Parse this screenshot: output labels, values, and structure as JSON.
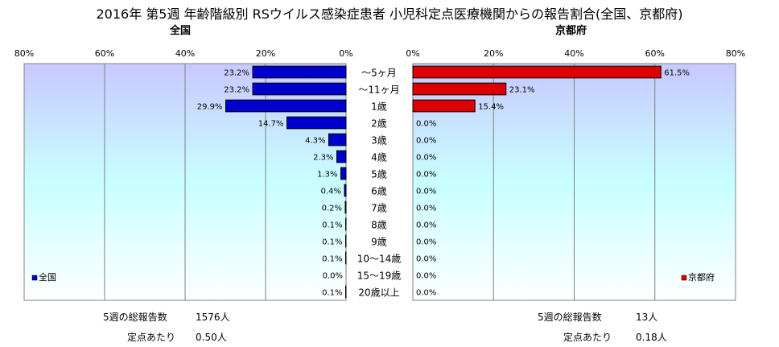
{
  "title": "2016年 第5週 年齢階級別 RSウイルス感染症患者 小児科定点医療機関からの報告割合(全国、京都府)",
  "chart_data": [
    {
      "type": "bar",
      "orientation": "horizontal",
      "direction": "right-to-left",
      "subtitle": "全国",
      "legend": "全国",
      "legend_position": "bottom-left",
      "color": "#0000cc",
      "xlim": [
        0,
        80
      ],
      "xticks": [
        "0%",
        "20%",
        "40%",
        "60%",
        "80%"
      ],
      "grid": true,
      "categories": [
        "～5ヶ月",
        "～11ヶ月",
        "1歳",
        "2歳",
        "3歳",
        "4歳",
        "5歳",
        "6歳",
        "7歳",
        "8歳",
        "9歳",
        "10～14歳",
        "15～19歳",
        "20歳以上"
      ],
      "values": [
        23.2,
        23.2,
        29.9,
        14.7,
        4.3,
        2.3,
        1.3,
        0.4,
        0.2,
        0.1,
        0.1,
        0.1,
        0.0,
        0.1
      ],
      "labels": [
        "23.2%",
        "23.2%",
        "29.9%",
        "14.7%",
        "4.3%",
        "2.3%",
        "1.3%",
        "0.4%",
        "0.2%",
        "0.1%",
        "0.1%",
        "0.1%",
        "0.0%",
        "0.1%"
      ]
    },
    {
      "type": "bar",
      "orientation": "horizontal",
      "direction": "left-to-right",
      "subtitle": "京都府",
      "legend": "京都府",
      "legend_position": "bottom-right",
      "color": "#dd0000",
      "xlim": [
        0,
        80
      ],
      "xticks": [
        "0%",
        "20%",
        "40%",
        "60%",
        "80%"
      ],
      "grid": true,
      "categories": [
        "～5ヶ月",
        "～11ヶ月",
        "1歳",
        "2歳",
        "3歳",
        "4歳",
        "5歳",
        "6歳",
        "7歳",
        "8歳",
        "9歳",
        "10～14歳",
        "15～19歳",
        "20歳以上"
      ],
      "values": [
        61.5,
        23.1,
        15.4,
        0,
        0,
        0,
        0,
        0,
        0,
        0,
        0,
        0,
        0,
        0
      ],
      "labels": [
        "61.5%",
        "23.1%",
        "15.4%",
        "0.0%",
        "0.0%",
        "0.0%",
        "0.0%",
        "0.0%",
        "0.0%",
        "0.0%",
        "0.0%",
        "0.0%",
        "0.0%",
        "0.0%"
      ]
    }
  ],
  "footer": {
    "national": {
      "total_label": "5週の総報告数",
      "total_value": "1576人",
      "per_label": "定点あたり",
      "per_value": "0.50人"
    },
    "kyoto": {
      "total_label": "5週の総報告数",
      "total_value": "13人",
      "per_label": "定点あたり",
      "per_value": "0.18人"
    }
  }
}
